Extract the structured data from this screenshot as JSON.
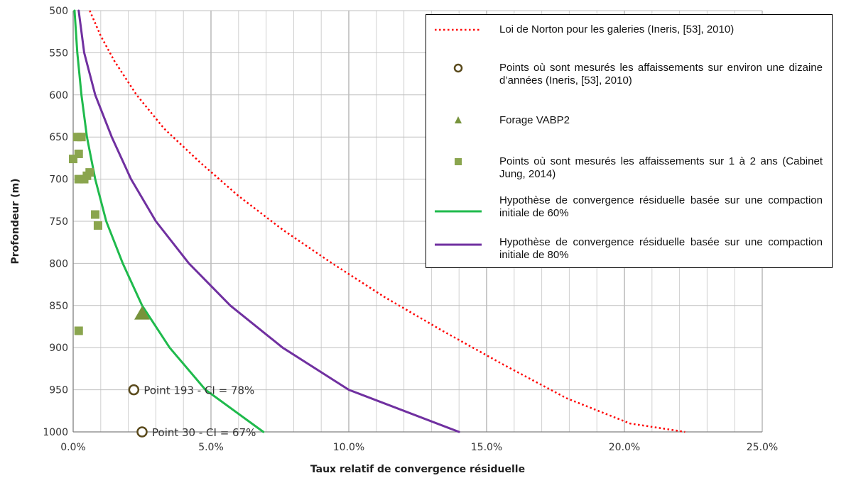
{
  "colors": {
    "norton": "#ff0000",
    "measured_points": "#5a4a1c",
    "vabp2": "#77933c",
    "jung": "#8aa54e",
    "hyp60": "#1fba4c",
    "hyp80": "#7030a0",
    "grid": "#d0d0d0"
  },
  "chart_data": {
    "type": "line",
    "x_axis": {
      "title": "Taux relatif de convergence résiduelle",
      "range": [
        0,
        25
      ],
      "unit": "%",
      "ticks": [
        "0.0%",
        "5.0%",
        "10.0%",
        "15.0%",
        "20.0%",
        "25.0%"
      ],
      "tick_values": [
        0,
        5,
        10,
        15,
        20,
        25
      ]
    },
    "y_axis": {
      "title": "Profondeur (m)",
      "range": [
        500,
        1000
      ],
      "inverted": true,
      "ticks": [
        "500",
        "550",
        "600",
        "650",
        "700",
        "750",
        "800",
        "850",
        "900",
        "950",
        "1000"
      ],
      "tick_values": [
        500,
        550,
        600,
        650,
        700,
        750,
        800,
        850,
        900,
        950,
        1000
      ]
    },
    "grid": true,
    "legend_placement": "top-right",
    "series": [
      {
        "name": "Loi de Norton pour les galeries (Ineris, [53],  2010)",
        "style": "dotted-line",
        "points": [
          [
            0.6,
            500
          ],
          [
            1.0,
            530
          ],
          [
            1.5,
            560
          ],
          [
            2.3,
            600
          ],
          [
            3.3,
            640
          ],
          [
            4.6,
            680
          ],
          [
            6.0,
            720
          ],
          [
            7.6,
            760
          ],
          [
            9.4,
            800
          ],
          [
            11.3,
            840
          ],
          [
            13.4,
            880
          ],
          [
            15.6,
            920
          ],
          [
            17.9,
            960
          ],
          [
            20.2,
            990
          ],
          [
            22.2,
            1000
          ]
        ]
      },
      {
        "name": "Points où sont mesurés les affaissements sur environ une dizaine d’années (Ineris, [53],   2010)",
        "style": "circle-marker",
        "points": [
          [
            2.2,
            950
          ],
          [
            2.5,
            1000
          ]
        ]
      },
      {
        "name": "Forage VABP2",
        "style": "triangle-marker",
        "points": [
          [
            2.5,
            860
          ]
        ]
      },
      {
        "name": "Points où sont mesurés les affaissements sur 1 à 2 ans (Cabinet Jung, 2014)",
        "style": "square-marker",
        "points": [
          [
            0.15,
            650
          ],
          [
            0.3,
            650
          ],
          [
            0.2,
            670
          ],
          [
            0.0,
            676
          ],
          [
            0.6,
            692
          ],
          [
            0.5,
            696
          ],
          [
            0.2,
            700
          ],
          [
            0.4,
            700
          ],
          [
            0.8,
            742
          ],
          [
            0.9,
            755
          ],
          [
            0.2,
            880
          ]
        ]
      },
      {
        "name": "Hypothèse de convergence résiduelle basée sur une compaction initiale de 60%",
        "style": "solid-line",
        "points": [
          [
            0.05,
            500
          ],
          [
            0.15,
            550
          ],
          [
            0.3,
            600
          ],
          [
            0.5,
            650
          ],
          [
            0.8,
            700
          ],
          [
            1.2,
            750
          ],
          [
            1.8,
            800
          ],
          [
            2.5,
            850
          ],
          [
            3.5,
            900
          ],
          [
            4.8,
            950
          ],
          [
            6.9,
            1000
          ]
        ]
      },
      {
        "name": "Hypothèse de convergence résiduelle basée sur une compaction initiale de 80%",
        "style": "solid-line",
        "points": [
          [
            0.2,
            500
          ],
          [
            0.4,
            550
          ],
          [
            0.8,
            600
          ],
          [
            1.4,
            650
          ],
          [
            2.1,
            700
          ],
          [
            3.0,
            750
          ],
          [
            4.2,
            800
          ],
          [
            5.7,
            850
          ],
          [
            7.6,
            900
          ],
          [
            10.0,
            950
          ],
          [
            14.0,
            1000
          ]
        ]
      }
    ],
    "annotations": [
      {
        "text": "Point 193 - CI = 78%",
        "x": 2.2,
        "y": 950
      },
      {
        "text": "Point 30 - CI = 67%",
        "x": 2.5,
        "y": 1000
      }
    ]
  }
}
